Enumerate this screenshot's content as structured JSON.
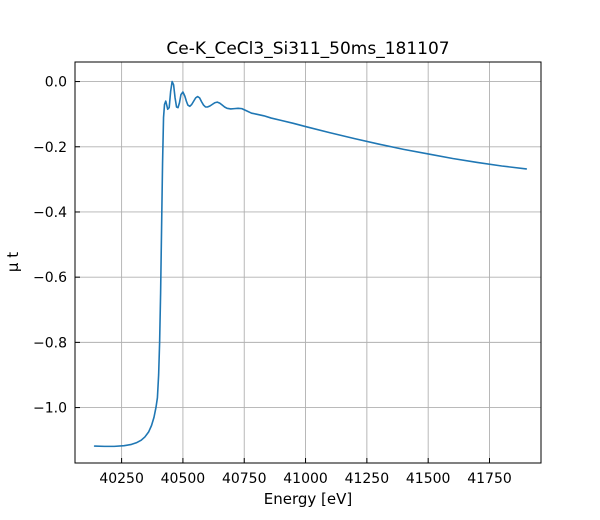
{
  "chart_data": {
    "type": "line",
    "title": "Ce-K_CeCl3_Si311_50ms_181107",
    "xlabel": "Energy [eV]",
    "ylabel": "μ t",
    "xlim": [
      40060,
      41960
    ],
    "ylim": [
      -1.17,
      0.06
    ],
    "xticks": [
      40250,
      40500,
      40750,
      41000,
      41250,
      41500,
      41750
    ],
    "xtick_labels": [
      "40250",
      "40500",
      "40750",
      "41000",
      "41250",
      "41500",
      "41750"
    ],
    "yticks": [
      0.0,
      -0.2,
      -0.4,
      -0.6,
      -0.8,
      -1.0
    ],
    "ytick_labels": [
      "0.0",
      "−0.2",
      "−0.4",
      "−0.6",
      "−0.8",
      "−1.0"
    ],
    "grid": true,
    "colors": {
      "line": "#1f77b4",
      "grid": "#b0b0b0",
      "axes": "#000000"
    },
    "series": [
      {
        "x": [
          40140,
          40180,
          40220,
          40260,
          40290,
          40310,
          40330,
          40345,
          40360,
          40372,
          40382,
          40390,
          40396,
          40401,
          40405,
          40409,
          40413,
          40417,
          40421,
          40425,
          40430,
          40434,
          40438,
          40444,
          40450,
          40456,
          40462,
          40468,
          40474,
          40480,
          40486,
          40492,
          40500,
          40508,
          40514,
          40520,
          40528,
          40536,
          40544,
          40552,
          40560,
          40568,
          40576,
          40584,
          40592,
          40600,
          40610,
          40620,
          40630,
          40640,
          40650,
          40660,
          40670,
          40680,
          40695,
          40710,
          40725,
          40740,
          40760,
          40780,
          40800,
          40830,
          40860,
          40900,
          40950,
          41000,
          41100,
          41200,
          41300,
          41400,
          41500,
          41600,
          41700,
          41800,
          41900
        ],
        "y": [
          -1.118,
          -1.119,
          -1.119,
          -1.117,
          -1.113,
          -1.108,
          -1.1,
          -1.09,
          -1.075,
          -1.055,
          -1.03,
          -1.0,
          -0.97,
          -0.9,
          -0.8,
          -0.65,
          -0.45,
          -0.25,
          -0.11,
          -0.07,
          -0.06,
          -0.072,
          -0.085,
          -0.08,
          -0.03,
          0.0,
          -0.01,
          -0.05,
          -0.078,
          -0.08,
          -0.065,
          -0.04,
          -0.032,
          -0.045,
          -0.06,
          -0.072,
          -0.076,
          -0.07,
          -0.06,
          -0.05,
          -0.046,
          -0.05,
          -0.062,
          -0.072,
          -0.078,
          -0.078,
          -0.075,
          -0.07,
          -0.065,
          -0.063,
          -0.066,
          -0.072,
          -0.078,
          -0.082,
          -0.084,
          -0.083,
          -0.082,
          -0.083,
          -0.09,
          -0.097,
          -0.1,
          -0.105,
          -0.112,
          -0.119,
          -0.128,
          -0.138,
          -0.157,
          -0.175,
          -0.192,
          -0.208,
          -0.222,
          -0.236,
          -0.248,
          -0.259,
          -0.268
        ]
      }
    ]
  }
}
